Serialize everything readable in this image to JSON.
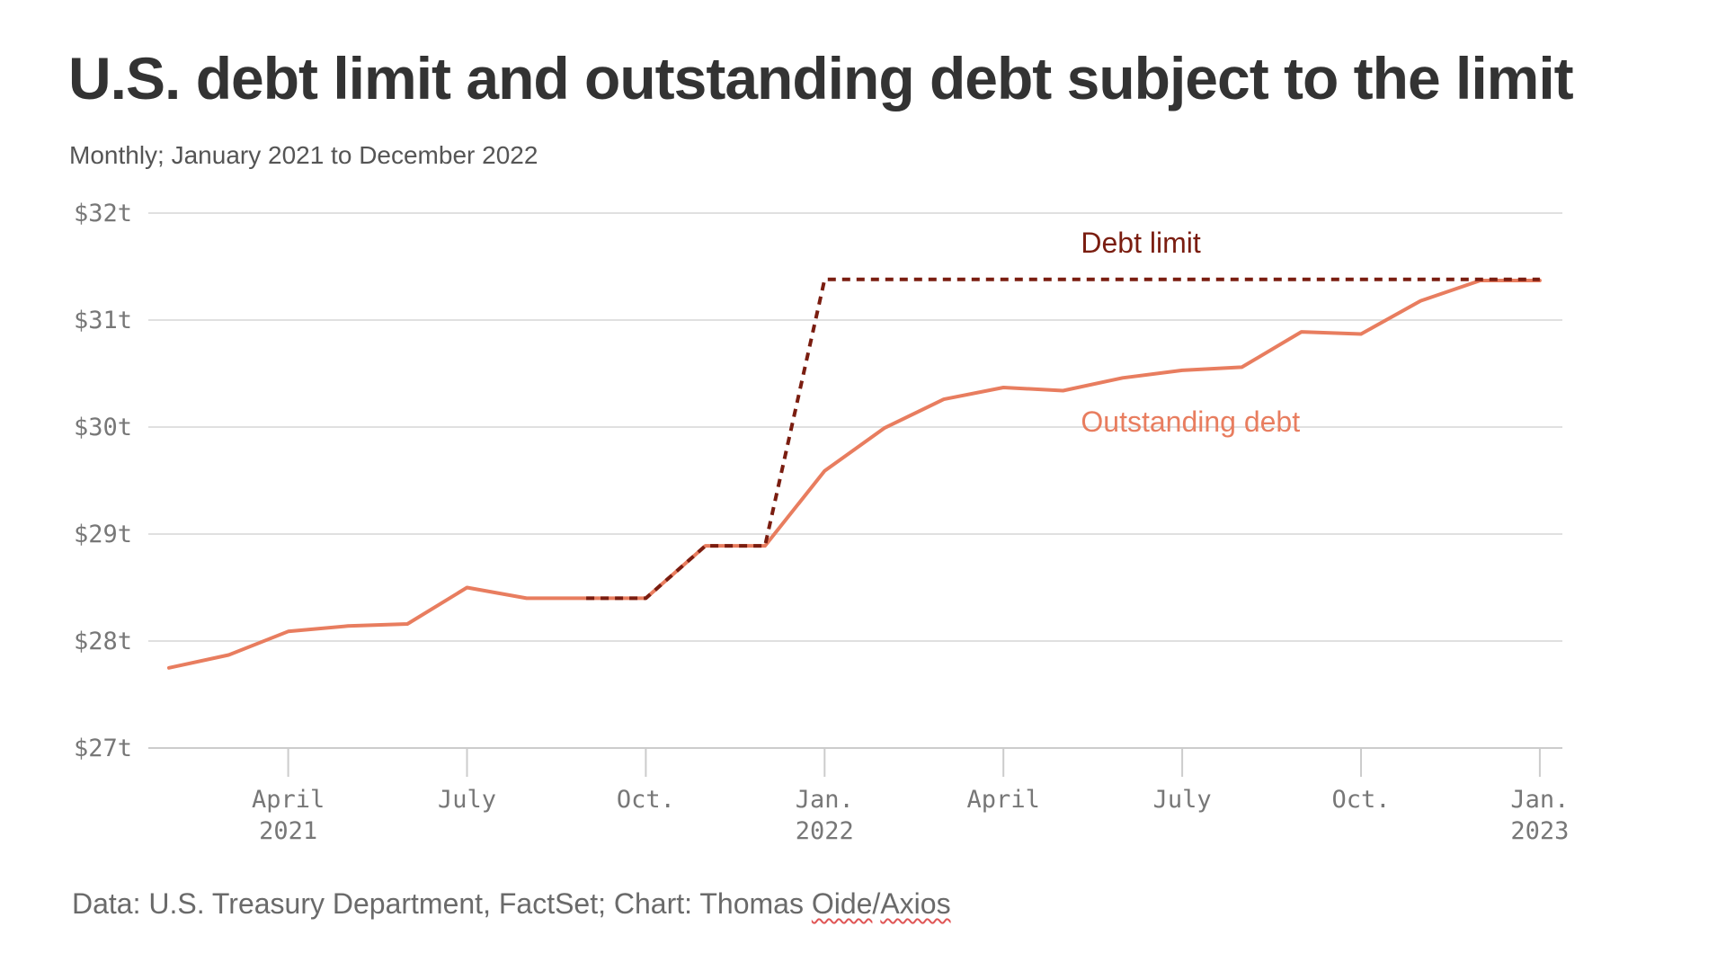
{
  "chart_data": {
    "type": "line",
    "title": "U.S. debt limit and outstanding debt subject to the limit",
    "subtitle": "Monthly; January 2021 to December 2022",
    "source": {
      "prefix": "Data: U.S. Treasury Department, FactSet; Chart: Thomas ",
      "name1": "Oide",
      "sep": "/",
      "name2": "Axios"
    },
    "xlabel": "",
    "ylabel": "",
    "ylim": [
      27,
      32
    ],
    "y_ticks": [
      {
        "value": 27,
        "label": "$27t"
      },
      {
        "value": 28,
        "label": "$28t"
      },
      {
        "value": 29,
        "label": "$29t"
      },
      {
        "value": 30,
        "label": "$30t"
      },
      {
        "value": 31,
        "label": "$31t"
      },
      {
        "value": 32,
        "label": "$32t"
      }
    ],
    "x_ticks": [
      {
        "index": 2,
        "line1": "April",
        "line2": "2021"
      },
      {
        "index": 5,
        "line1": "July",
        "line2": ""
      },
      {
        "index": 8,
        "line1": "Oct.",
        "line2": ""
      },
      {
        "index": 11,
        "line1": "Jan.",
        "line2": "2022"
      },
      {
        "index": 14,
        "line1": "April",
        "line2": ""
      },
      {
        "index": 17,
        "line1": "July",
        "line2": ""
      },
      {
        "index": 20,
        "line1": "Oct.",
        "line2": ""
      },
      {
        "index": 23,
        "line1": "Jan.",
        "line2": "2023"
      }
    ],
    "categories": [
      "Jan 2021",
      "Feb 2021",
      "Mar 2021",
      "Apr 2021",
      "May 2021",
      "Jun 2021",
      "Jul 2021",
      "Aug 2021",
      "Sep 2021",
      "Oct 2021",
      "Nov 2021",
      "Dec 2021",
      "Jan 2022",
      "Feb 2022",
      "Mar 2022",
      "Apr 2022",
      "May 2022",
      "Jun 2022",
      "Jul 2022",
      "Aug 2022",
      "Sep 2022",
      "Oct 2022",
      "Nov 2022",
      "Dec 2022"
    ],
    "series": [
      {
        "name": "Outstanding debt",
        "color": "#e87d5f",
        "style": "solid",
        "values": [
          27.75,
          27.87,
          28.09,
          28.14,
          28.16,
          28.5,
          28.4,
          28.4,
          28.4,
          28.89,
          28.89,
          29.59,
          29.99,
          30.26,
          30.37,
          30.34,
          30.46,
          30.53,
          30.56,
          30.89,
          30.87,
          31.18,
          31.37,
          31.37
        ],
        "label_position": [
          15.3,
          29.96
        ]
      },
      {
        "name": "Debt limit",
        "color": "#7a1d10",
        "style": "dashed",
        "values": [
          null,
          null,
          null,
          null,
          null,
          null,
          null,
          28.4,
          28.4,
          28.89,
          28.89,
          31.38,
          31.38,
          31.38,
          31.38,
          31.38,
          31.38,
          31.38,
          31.38,
          31.38,
          31.38,
          31.38,
          31.38,
          31.38
        ],
        "label_position": [
          15.3,
          31.63
        ]
      }
    ],
    "colors": {
      "title": "#333333",
      "grid": "#e0e0e0",
      "axis": "#cccccc",
      "tick": "#777777"
    }
  }
}
